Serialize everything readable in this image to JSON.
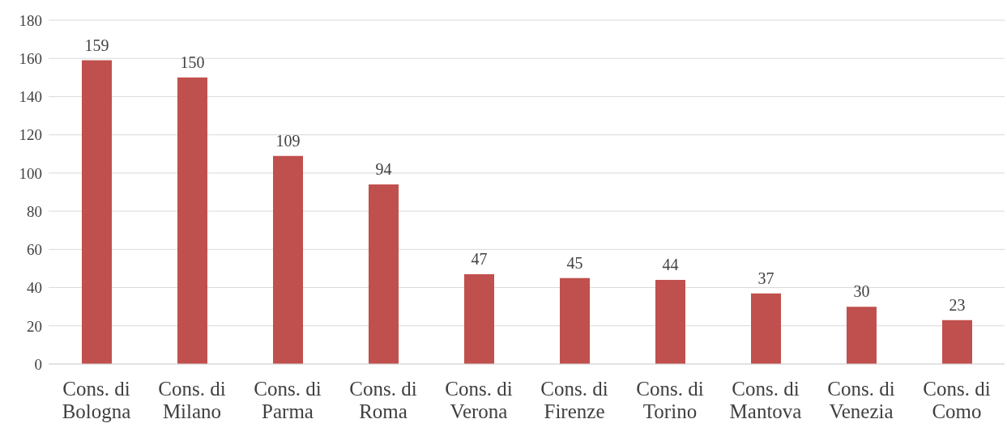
{
  "chart_data": {
    "type": "bar",
    "categories": [
      "Cons. di Bologna",
      "Cons. di Milano",
      "Cons. di Parma",
      "Cons. di Roma",
      "Cons. di Verona",
      "Cons. di Firenze",
      "Cons. di Torino",
      "Cons. di Mantova",
      "Cons. di Venezia",
      "Cons. di Como"
    ],
    "values": [
      159,
      150,
      109,
      94,
      47,
      45,
      44,
      37,
      30,
      23
    ],
    "color": "#c0504d",
    "ylim": [
      0,
      180
    ],
    "yticks": [
      0,
      20,
      40,
      60,
      80,
      100,
      120,
      140,
      160,
      180
    ],
    "grid": "y",
    "data_labels": true
  }
}
